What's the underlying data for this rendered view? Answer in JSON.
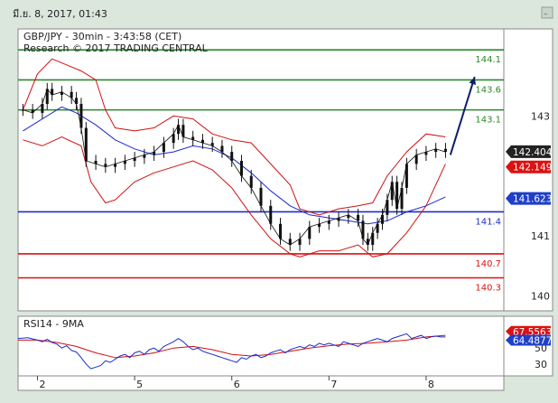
{
  "window": {
    "datetime": "มี.ย. 8, 2017, 01:43",
    "title_line": "GBP/JPY - 30min - 3:43:58 (CET)",
    "copyright_line": "Research © 2017 TRADING CENTRAL",
    "rsi_title": "RSI14 - 9MA"
  },
  "colors": {
    "frame": "#dbe6dd",
    "panel": "#ffffff",
    "green_level": "#2a8a2a",
    "blue_level": "#1f2ecc",
    "red_level": "#dd1111",
    "bollinger": "#d01010",
    "ma_blue": "#1a2ad0",
    "candle": "#111111",
    "arrow": "#0c1e6c",
    "badge_dark": "#222222",
    "badge_red": "#dd1111",
    "badge_blue": "#1f3fc8"
  },
  "chart_data": [
    {
      "type": "line",
      "title": "GBP/JPY - 30min - 3:43:58 (CET)",
      "subtitle": "Research © 2017 TRADING CENTRAL",
      "x_tick_labels": [
        "2",
        "5",
        "6",
        "7",
        "8"
      ],
      "y_tick_labels": [
        "143",
        "141",
        "140"
      ],
      "ylim": [
        139.75,
        144.45
      ],
      "x_tick_positions": [
        4,
        24,
        44,
        64,
        84
      ],
      "xlim": [
        0,
        100
      ],
      "levels": [
        {
          "value": 144.1,
          "label": "144.1",
          "color": "#2a8a2a"
        },
        {
          "value": 143.6,
          "label": "143.6",
          "color": "#2a8a2a"
        },
        {
          "value": 143.1,
          "label": "143.1",
          "color": "#2a8a2a"
        },
        {
          "value": 141.4,
          "label": "141.4",
          "color": "#1f2ecc"
        },
        {
          "value": 140.7,
          "label": "140.7",
          "color": "#dd1111"
        },
        {
          "value": 140.3,
          "label": "140.3",
          "color": "#dd1111"
        }
      ],
      "price_badges": [
        {
          "value": 142.404,
          "label": "142.404",
          "color": "#222222"
        },
        {
          "value": 142.149,
          "label": "142.149",
          "color": "#dd1111"
        },
        {
          "value": 141.623,
          "label": "141.623",
          "color": "#1f3fc8"
        }
      ],
      "close_series": [
        [
          1,
          143.1
        ],
        [
          3,
          143.05
        ],
        [
          5,
          143.2
        ],
        [
          6,
          143.45
        ],
        [
          7,
          143.35
        ],
        [
          9,
          143.4
        ],
        [
          11,
          143.3
        ],
        [
          12,
          143.2
        ],
        [
          13,
          142.8
        ],
        [
          14,
          142.25
        ],
        [
          16,
          142.2
        ],
        [
          18,
          142.15
        ],
        [
          20,
          142.2
        ],
        [
          22,
          142.25
        ],
        [
          24,
          142.3
        ],
        [
          26,
          142.35
        ],
        [
          28,
          142.4
        ],
        [
          30,
          142.55
        ],
        [
          32,
          142.7
        ],
        [
          33,
          142.85
        ],
        [
          34,
          142.65
        ],
        [
          36,
          142.6
        ],
        [
          38,
          142.55
        ],
        [
          40,
          142.5
        ],
        [
          42,
          142.4
        ],
        [
          44,
          142.25
        ],
        [
          46,
          142.0
        ],
        [
          48,
          141.8
        ],
        [
          50,
          141.5
        ],
        [
          52,
          141.2
        ],
        [
          54,
          140.95
        ],
        [
          56,
          140.85
        ],
        [
          58,
          140.95
        ],
        [
          60,
          141.15
        ],
        [
          62,
          141.2
        ],
        [
          64,
          141.25
        ],
        [
          66,
          141.3
        ],
        [
          68,
          141.35
        ],
        [
          70,
          141.25
        ],
        [
          71,
          140.95
        ],
        [
          72,
          140.85
        ],
        [
          73,
          141.05
        ],
        [
          74,
          141.2
        ],
        [
          75,
          141.35
        ],
        [
          76,
          141.6
        ],
        [
          77,
          141.9
        ],
        [
          78,
          141.45
        ],
        [
          79,
          141.8
        ],
        [
          80,
          142.2
        ],
        [
          82,
          142.35
        ],
        [
          84,
          142.4
        ],
        [
          86,
          142.45
        ],
        [
          88,
          142.4
        ]
      ],
      "ma_series": [
        [
          1,
          142.75
        ],
        [
          5,
          142.95
        ],
        [
          9,
          143.15
        ],
        [
          12,
          143.05
        ],
        [
          16,
          142.85
        ],
        [
          20,
          142.6
        ],
        [
          24,
          142.45
        ],
        [
          28,
          142.35
        ],
        [
          32,
          142.4
        ],
        [
          36,
          142.5
        ],
        [
          40,
          142.45
        ],
        [
          44,
          142.3
        ],
        [
          48,
          142.05
        ],
        [
          52,
          141.75
        ],
        [
          56,
          141.5
        ],
        [
          60,
          141.35
        ],
        [
          64,
          141.3
        ],
        [
          68,
          141.25
        ],
        [
          72,
          141.2
        ],
        [
          76,
          141.25
        ],
        [
          80,
          141.4
        ],
        [
          84,
          141.5
        ],
        [
          88,
          141.65
        ]
      ],
      "bb_upper": [
        [
          1,
          143.1
        ],
        [
          4,
          143.7
        ],
        [
          7,
          143.95
        ],
        [
          10,
          143.85
        ],
        [
          13,
          143.75
        ],
        [
          16,
          143.6
        ],
        [
          18,
          143.1
        ],
        [
          20,
          142.8
        ],
        [
          24,
          142.75
        ],
        [
          28,
          142.8
        ],
        [
          32,
          143.0
        ],
        [
          36,
          142.95
        ],
        [
          40,
          142.7
        ],
        [
          44,
          142.6
        ],
        [
          48,
          142.55
        ],
        [
          52,
          142.2
        ],
        [
          56,
          141.85
        ],
        [
          58,
          141.45
        ],
        [
          62,
          141.35
        ],
        [
          66,
          141.45
        ],
        [
          70,
          141.5
        ],
        [
          73,
          141.55
        ],
        [
          76,
          142.0
        ],
        [
          80,
          142.4
        ],
        [
          84,
          142.7
        ],
        [
          88,
          142.65
        ]
      ],
      "bb_lower": [
        [
          1,
          142.6
        ],
        [
          5,
          142.5
        ],
        [
          9,
          142.65
        ],
        [
          13,
          142.5
        ],
        [
          15,
          141.9
        ],
        [
          18,
          141.55
        ],
        [
          20,
          141.6
        ],
        [
          24,
          141.9
        ],
        [
          28,
          142.05
        ],
        [
          32,
          142.15
        ],
        [
          36,
          142.25
        ],
        [
          40,
          142.1
        ],
        [
          44,
          141.8
        ],
        [
          48,
          141.35
        ],
        [
          52,
          140.95
        ],
        [
          56,
          140.7
        ],
        [
          58,
          140.65
        ],
        [
          62,
          140.75
        ],
        [
          66,
          140.75
        ],
        [
          70,
          140.85
        ],
        [
          73,
          140.65
        ],
        [
          76,
          140.7
        ],
        [
          80,
          141.05
        ],
        [
          84,
          141.5
        ],
        [
          88,
          142.2
        ]
      ],
      "projection": {
        "from": [
          89,
          142.35
        ],
        "to": [
          94,
          143.65
        ]
      }
    },
    {
      "type": "line",
      "title": "RSI14 - 9MA",
      "y_tick_labels": [
        "50",
        "30"
      ],
      "ylim": [
        15,
        90
      ],
      "value_badges": [
        {
          "value": 67.5563,
          "label": "67.5563",
          "color": "#dd1111"
        },
        {
          "value": 64.4877,
          "label": "64.4877",
          "color": "#1f3fc8"
        }
      ],
      "rsi_series": [
        [
          0,
          62
        ],
        [
          2,
          63
        ],
        [
          4,
          60
        ],
        [
          5,
          58
        ],
        [
          6,
          61
        ],
        [
          7,
          57
        ],
        [
          8,
          55
        ],
        [
          9,
          50
        ],
        [
          10,
          53
        ],
        [
          11,
          47
        ],
        [
          12,
          45
        ],
        [
          13,
          38
        ],
        [
          14,
          30
        ],
        [
          15,
          24
        ],
        [
          16,
          26
        ],
        [
          17,
          28
        ],
        [
          18,
          34
        ],
        [
          19,
          32
        ],
        [
          20,
          36
        ],
        [
          21,
          40
        ],
        [
          22,
          42
        ],
        [
          23,
          38
        ],
        [
          24,
          44
        ],
        [
          25,
          46
        ],
        [
          26,
          42
        ],
        [
          27,
          48
        ],
        [
          28,
          50
        ],
        [
          29,
          46
        ],
        [
          30,
          52
        ],
        [
          31,
          55
        ],
        [
          32,
          58
        ],
        [
          33,
          62
        ],
        [
          34,
          58
        ],
        [
          35,
          52
        ],
        [
          36,
          48
        ],
        [
          37,
          50
        ],
        [
          38,
          46
        ],
        [
          39,
          44
        ],
        [
          40,
          42
        ],
        [
          41,
          40
        ],
        [
          42,
          38
        ],
        [
          43,
          36
        ],
        [
          44,
          34
        ],
        [
          45,
          32
        ],
        [
          46,
          38
        ],
        [
          47,
          36
        ],
        [
          48,
          40
        ],
        [
          49,
          42
        ],
        [
          50,
          38
        ],
        [
          51,
          40
        ],
        [
          52,
          44
        ],
        [
          53,
          46
        ],
        [
          54,
          48
        ],
        [
          55,
          44
        ],
        [
          56,
          48
        ],
        [
          57,
          50
        ],
        [
          58,
          52
        ],
        [
          59,
          50
        ],
        [
          60,
          54
        ],
        [
          61,
          52
        ],
        [
          62,
          56
        ],
        [
          63,
          54
        ],
        [
          64,
          56
        ],
        [
          65,
          54
        ],
        [
          66,
          52
        ],
        [
          67,
          58
        ],
        [
          68,
          56
        ],
        [
          69,
          54
        ],
        [
          70,
          52
        ],
        [
          71,
          56
        ],
        [
          72,
          58
        ],
        [
          73,
          60
        ],
        [
          74,
          62
        ],
        [
          75,
          60
        ],
        [
          76,
          58
        ],
        [
          77,
          62
        ],
        [
          78,
          64
        ],
        [
          79,
          66
        ],
        [
          80,
          68
        ],
        [
          81,
          62
        ],
        [
          82,
          64
        ],
        [
          83,
          66
        ],
        [
          84,
          62
        ],
        [
          85,
          64
        ],
        [
          86,
          65
        ],
        [
          87,
          64
        ],
        [
          88,
          64
        ]
      ],
      "rsi_ma_series": [
        [
          0,
          60
        ],
        [
          4,
          60
        ],
        [
          8,
          57
        ],
        [
          12,
          52
        ],
        [
          16,
          44
        ],
        [
          20,
          38
        ],
        [
          24,
          40
        ],
        [
          28,
          44
        ],
        [
          32,
          50
        ],
        [
          36,
          52
        ],
        [
          40,
          48
        ],
        [
          44,
          42
        ],
        [
          48,
          40
        ],
        [
          52,
          42
        ],
        [
          56,
          46
        ],
        [
          60,
          50
        ],
        [
          64,
          53
        ],
        [
          68,
          55
        ],
        [
          72,
          56
        ],
        [
          76,
          58
        ],
        [
          80,
          60
        ],
        [
          84,
          64
        ],
        [
          88,
          66
        ]
      ]
    }
  ]
}
